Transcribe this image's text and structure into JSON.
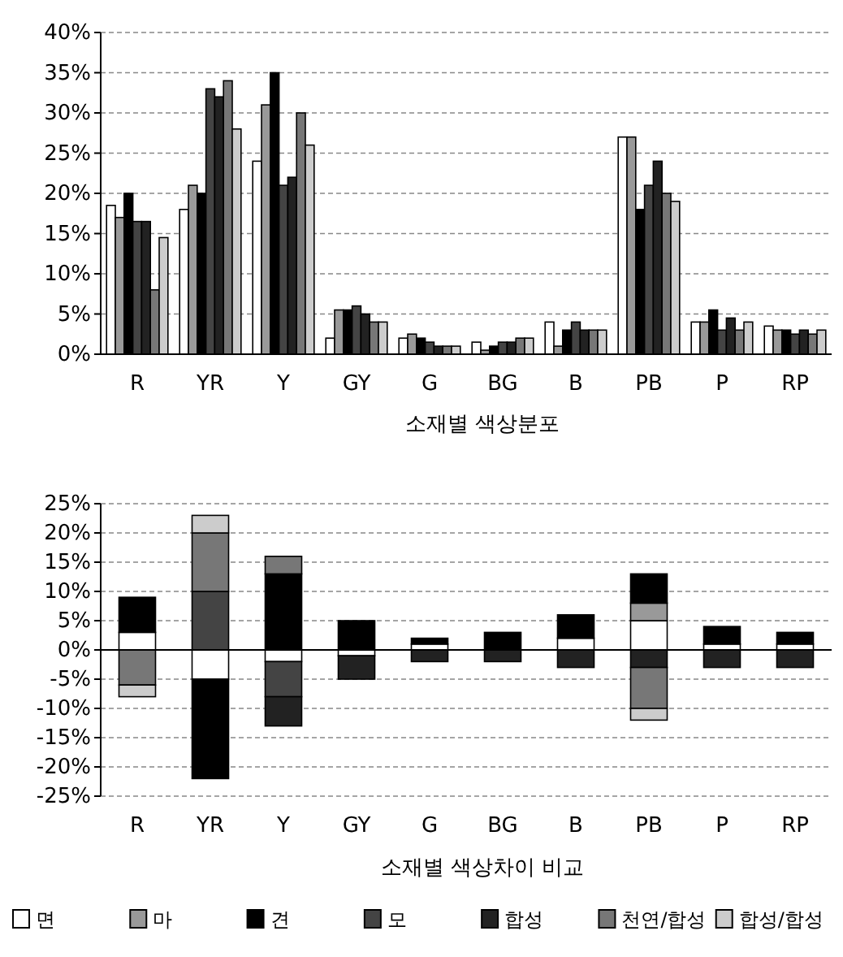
{
  "chart_data": [
    {
      "type": "bar",
      "xlabel": "소재별 색상분포",
      "categories": [
        "R",
        "YR",
        "Y",
        "GY",
        "G",
        "BG",
        "B",
        "PB",
        "P",
        "RP"
      ],
      "series": [
        {
          "color": "#ffffff",
          "values": [
            18.5,
            18,
            24,
            2,
            2,
            1.5,
            4,
            27,
            4,
            3.5
          ]
        },
        {
          "color": "#999999",
          "values": [
            17,
            21,
            31,
            5.5,
            2.5,
            0.5,
            1,
            27,
            4,
            3
          ]
        },
        {
          "color": "#000000",
          "values": [
            20,
            20,
            35,
            5.5,
            2,
            1,
            3,
            18,
            5.5,
            3
          ]
        },
        {
          "color": "#444444",
          "values": [
            16.5,
            33,
            21,
            6,
            1.5,
            1.5,
            4,
            21,
            3,
            2.5
          ]
        },
        {
          "color": "#222222",
          "values": [
            16.5,
            32,
            22,
            5,
            1,
            1.5,
            3,
            24,
            4.5,
            3
          ]
        },
        {
          "color": "#777777",
          "values": [
            8,
            34,
            30,
            4,
            1,
            2,
            3,
            20,
            3,
            2.5
          ]
        },
        {
          "color": "#cccccc",
          "values": [
            14.5,
            28,
            26,
            4,
            1,
            2,
            3,
            19,
            4,
            3
          ]
        }
      ],
      "ylim": [
        0,
        40
      ],
      "yticks": [
        {
          "value": 0,
          "label": "0%"
        },
        {
          "value": 5,
          "label": "5%"
        },
        {
          "value": 10,
          "label": "10%"
        },
        {
          "value": 15,
          "label": "15%"
        },
        {
          "value": 20,
          "label": "20%"
        },
        {
          "value": 25,
          "label": "25%"
        },
        {
          "value": 30,
          "label": "30%"
        },
        {
          "value": 35,
          "label": "35%"
        },
        {
          "value": 40,
          "label": "40%"
        }
      ],
      "grid": "y",
      "legend": false
    },
    {
      "type": "bar",
      "stacked": true,
      "xlabel": "소재별 색상차이 비교",
      "categories": [
        "R",
        "YR",
        "Y",
        "GY",
        "G",
        "BG",
        "B",
        "PB",
        "P",
        "RP"
      ],
      "series": [
        {
          "name": "면",
          "color": "#ffffff",
          "values": [
            3,
            -5,
            -2,
            -1,
            1,
            null,
            2,
            5,
            1,
            1
          ]
        },
        {
          "name": "마",
          "color": "#999999",
          "values": [
            null,
            null,
            null,
            null,
            null,
            null,
            null,
            3,
            null,
            null
          ]
        },
        {
          "name": "견",
          "color": "#000000",
          "values": [
            6,
            -17,
            13,
            5,
            1,
            3,
            4,
            5,
            3,
            2
          ]
        },
        {
          "name": "모",
          "color": "#444444",
          "values": [
            null,
            10,
            -6,
            null,
            null,
            null,
            null,
            null,
            null,
            null
          ]
        },
        {
          "name": "합성",
          "color": "#222222",
          "values": [
            null,
            null,
            -5,
            -4,
            -2,
            -2,
            -3,
            -3,
            -3,
            -3
          ]
        },
        {
          "name": "천연/합성",
          "color": "#777777",
          "values": [
            -6,
            10,
            3,
            null,
            null,
            null,
            null,
            -7,
            null,
            null
          ]
        },
        {
          "name": "합성/합성",
          "color": "#cccccc",
          "values": [
            -2,
            3,
            null,
            null,
            null,
            null,
            null,
            -2,
            null,
            null
          ]
        }
      ],
      "ylim": [
        -25,
        25
      ],
      "yticks": [
        {
          "value": 25,
          "label": "25%"
        },
        {
          "value": 20,
          "label": "20%"
        },
        {
          "value": 15,
          "label": "15%"
        },
        {
          "value": 10,
          "label": "10%"
        },
        {
          "value": 5,
          "label": "5%"
        },
        {
          "value": 0,
          "label": "0%"
        },
        {
          "value": -5,
          "label": "-5%"
        },
        {
          "value": -10,
          "label": "-10%"
        },
        {
          "value": -15,
          "label": "-15%"
        },
        {
          "value": -20,
          "label": "-20%"
        },
        {
          "value": -25,
          "label": "-25%"
        }
      ],
      "grid": "y",
      "legend": "bottom"
    }
  ]
}
